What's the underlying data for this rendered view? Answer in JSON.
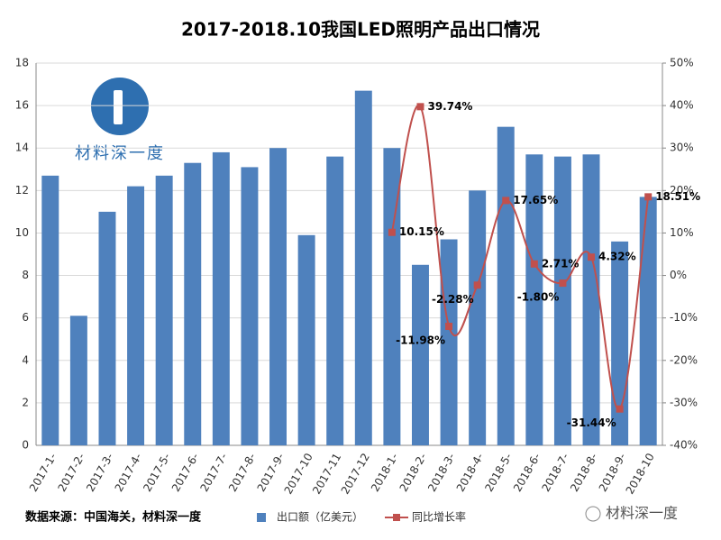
{
  "chart_data": {
    "type": "bar_line",
    "title": "2017-2018.10我国LED照明产品出口情况",
    "categories": [
      "2017-1-",
      "2017-2-",
      "2017-3-",
      "2017-4-",
      "2017-5-",
      "2017-6-",
      "2017-7-",
      "2017-8-",
      "2017-9-",
      "2017-10",
      "2017-11",
      "2017-12",
      "2018-1-",
      "2018-2-",
      "2018-3-",
      "2018-4-",
      "2018-5-",
      "2018-6-",
      "2018-7-",
      "2018-8-",
      "2018-9-",
      "2018-10"
    ],
    "series": [
      {
        "name": "出口额（亿美元）",
        "color": "#4f81bd",
        "type": "bar",
        "values": [
          12.7,
          6.1,
          11.0,
          12.2,
          12.7,
          13.3,
          13.8,
          13.1,
          14.0,
          9.9,
          13.6,
          16.7,
          14.0,
          8.5,
          9.7,
          12.0,
          15.0,
          13.7,
          13.6,
          13.7,
          9.6,
          11.7
        ]
      },
      {
        "name": "同比增长率",
        "color": "#c0504d",
        "type": "line",
        "axis": "y2",
        "values": [
          null,
          null,
          null,
          null,
          null,
          null,
          null,
          null,
          null,
          null,
          null,
          null,
          10.15,
          39.74,
          -11.98,
          -2.28,
          17.65,
          2.71,
          -1.8,
          4.32,
          -31.44,
          18.51
        ],
        "value_labels": [
          null,
          null,
          null,
          null,
          null,
          null,
          null,
          null,
          null,
          null,
          null,
          null,
          "10.15%",
          "39.74%",
          "-11.98%",
          "-2.28%",
          "17.65%",
          "2.71%",
          "-1.80%",
          "4.32%",
          "-31.44%",
          "18.51%"
        ]
      }
    ],
    "ylim": [
      0,
      18
    ],
    "yticks": [
      0,
      2,
      4,
      6,
      8,
      10,
      12,
      14,
      16,
      18
    ],
    "y2lim": [
      -40,
      50
    ],
    "y2ticks": [
      {
        "value": -40,
        "label": "-40%"
      },
      {
        "value": -30,
        "label": "-30%"
      },
      {
        "value": -20,
        "label": "-20%"
      },
      {
        "value": -10,
        "label": "-10%"
      },
      {
        "value": 0,
        "label": "0%"
      },
      {
        "value": 10,
        "label": "10%"
      },
      {
        "value": 20,
        "label": "20%"
      },
      {
        "value": 30,
        "label": "30%"
      },
      {
        "value": 40,
        "label": "40%"
      },
      {
        "value": 50,
        "label": "50%"
      }
    ],
    "grid": true,
    "source": "数据来源：中国海关，材料深一度",
    "logo_text": "材料深一度",
    "watermark": "材料深一度"
  }
}
